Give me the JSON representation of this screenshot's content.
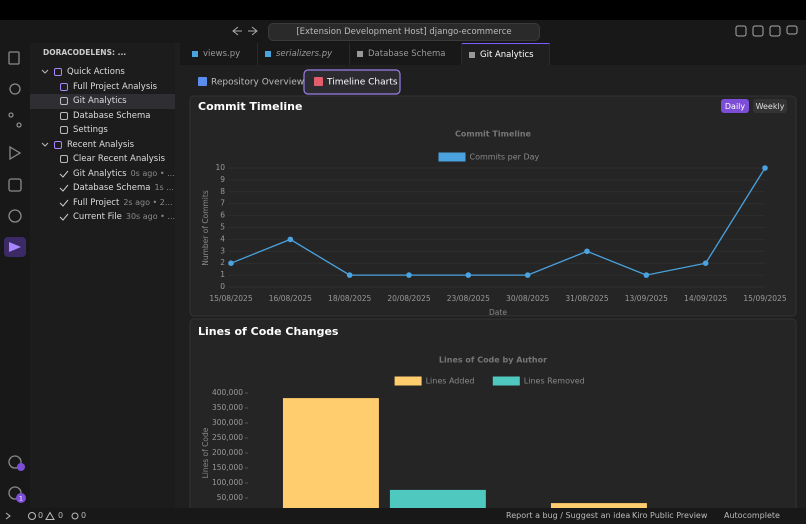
{
  "title_bar": {
    "command_center": "[Extension Development Host] django-ecommerce"
  },
  "activity_bar": {
    "settings_badge": 1
  },
  "sidebar": {
    "title": "DORACODELENS: ...",
    "sections": [
      {
        "label": "Quick Actions",
        "items": [
          {
            "label": "Full Project Analysis"
          },
          {
            "label": "Git Analytics",
            "selected": true
          },
          {
            "label": "Database Schema"
          },
          {
            "label": "Settings"
          }
        ]
      },
      {
        "label": "Recent Analysis",
        "items": [
          {
            "label": "Clear Recent Analysis"
          },
          {
            "label": "Git Analytics",
            "description": "0s ago • ..."
          },
          {
            "label": "Database Schema",
            "description": "1s ..."
          },
          {
            "label": "Full Project",
            "description": "2s ago • 2..."
          },
          {
            "label": "Current File",
            "description": "30s ago • ..."
          }
        ]
      }
    ]
  },
  "editor_tabs": [
    "views.py",
    "serializers.py",
    "Database Schema",
    "Git Analytics"
  ],
  "webview": {
    "tabs": [
      "Repository Overview",
      "Timeline Charts"
    ],
    "cards": [
      {
        "title": "Commit Timeline",
        "buttons": [
          "Daily",
          "Weekly"
        ]
      },
      {
        "title": "Lines of Code Changes"
      }
    ]
  },
  "chart_data": [
    {
      "type": "line",
      "title": "Commit Timeline",
      "x_label": "Date",
      "y_label": "Number of Commits",
      "categories": [
        "15/08/2025",
        "16/08/2025",
        "18/08/2025",
        "20/08/2025",
        "23/08/2025",
        "30/08/2025",
        "31/08/2025",
        "13/09/2025",
        "14/09/2025",
        "15/09/2025"
      ],
      "series": [
        {
          "name": "Commits per Day",
          "color": "#4aa3df",
          "values": [
            2,
            4,
            1,
            1,
            1,
            1,
            3,
            1,
            2,
            10
          ]
        }
      ],
      "ylim": [
        0,
        10
      ],
      "yticks": [
        0,
        1,
        2,
        3,
        4,
        5,
        6,
        7,
        8,
        9,
        10
      ],
      "grid": true
    },
    {
      "type": "bar",
      "title": "Lines of Code by Author",
      "y_label": "Lines of Code",
      "categories": [
        null,
        null
      ],
      "series": [
        {
          "name": "Lines Added",
          "color": "#ffcd6e",
          "values": [
            383000,
            33000
          ]
        },
        {
          "name": "Lines Removed",
          "color": "#4fc9c0",
          "values": [
            77000,
            null
          ]
        }
      ],
      "ylim": [
        0,
        400000
      ],
      "yticks": [
        {
          "value": 50000,
          "label": "50,000"
        },
        {
          "value": 100000,
          "label": "100,000"
        },
        {
          "value": 150000,
          "label": "150,000"
        },
        {
          "value": 200000,
          "label": "200,000"
        },
        {
          "value": 250000,
          "label": "250,000"
        },
        {
          "value": 300000,
          "label": "300,000"
        },
        {
          "value": 350000,
          "label": "350,000"
        },
        {
          "value": 400000,
          "label": "400,000"
        }
      ],
      "grid": false
    }
  ],
  "status_bar": {
    "errors": 0,
    "warnings": 0,
    "ports": 0,
    "right": [
      "Report a bug / Suggest an idea",
      "Kiro Public Preview",
      "Autocomplete"
    ]
  }
}
